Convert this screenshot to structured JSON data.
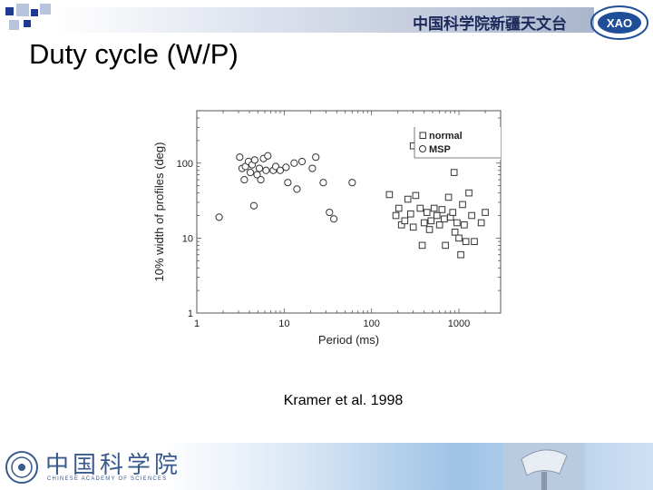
{
  "header": {
    "org_title": "中国科学院新疆天文台",
    "logo_text": "XAO"
  },
  "slide": {
    "title": "Duty cycle (W/P)",
    "caption": "Kramer et al. 1998"
  },
  "footer": {
    "org_name": "中国科学院",
    "org_name_en": "CHINESE ACADEMY OF SCIENCES"
  },
  "colors": {
    "title_bar_start": "#ffffff",
    "title_bar_end": "#aab6cd",
    "org_text": "#1c2a5a",
    "deco_square_dark": "#1f3a93",
    "deco_square_light": "#b8c4dc"
  },
  "chart_data": {
    "type": "scatter",
    "xlabel": "Period (ms)",
    "ylabel": "10% width of profiles (deg)",
    "xscale": "log",
    "yscale": "log",
    "xlim": [
      1,
      3000
    ],
    "ylim": [
      1,
      500
    ],
    "xticks": [
      1,
      10,
      100,
      1000
    ],
    "xtick_labels": [
      "1",
      "10",
      "100",
      "1000"
    ],
    "yticks": [
      1,
      10,
      100
    ],
    "ytick_labels": [
      "1",
      "10",
      "100"
    ],
    "legend": {
      "position": "top-right",
      "entries": [
        "normal",
        "MSP"
      ]
    },
    "series": [
      {
        "name": "MSP",
        "marker": "circle",
        "points": [
          [
            1.8,
            19
          ],
          [
            3.1,
            120
          ],
          [
            3.3,
            85
          ],
          [
            3.5,
            60
          ],
          [
            3.6,
            90
          ],
          [
            3.9,
            105
          ],
          [
            4.1,
            75
          ],
          [
            4.3,
            95
          ],
          [
            4.5,
            27
          ],
          [
            4.6,
            110
          ],
          [
            4.9,
            70
          ],
          [
            5.2,
            85
          ],
          [
            5.4,
            60
          ],
          [
            5.8,
            115
          ],
          [
            6.2,
            80
          ],
          [
            6.5,
            125
          ],
          [
            7.5,
            80
          ],
          [
            8.0,
            90
          ],
          [
            9.0,
            80
          ],
          [
            10.5,
            88
          ],
          [
            11.0,
            55
          ],
          [
            13.0,
            100
          ],
          [
            14.0,
            45
          ],
          [
            16.0,
            105
          ],
          [
            21.0,
            85
          ],
          [
            23.0,
            120
          ],
          [
            28.0,
            55
          ],
          [
            33.0,
            22
          ],
          [
            37.0,
            18
          ],
          [
            60.0,
            55
          ]
        ]
      },
      {
        "name": "normal",
        "marker": "square",
        "points": [
          [
            160,
            38
          ],
          [
            190,
            20
          ],
          [
            205,
            25
          ],
          [
            220,
            15
          ],
          [
            240,
            17
          ],
          [
            260,
            33
          ],
          [
            280,
            21
          ],
          [
            300,
            14
          ],
          [
            320,
            37
          ],
          [
            360,
            25
          ],
          [
            380,
            8
          ],
          [
            400,
            16
          ],
          [
            430,
            22
          ],
          [
            460,
            13
          ],
          [
            480,
            17
          ],
          [
            520,
            25
          ],
          [
            560,
            20
          ],
          [
            600,
            15
          ],
          [
            640,
            24
          ],
          [
            680,
            18
          ],
          [
            700,
            8
          ],
          [
            760,
            35
          ],
          [
            800,
            19
          ],
          [
            850,
            22
          ],
          [
            900,
            12
          ],
          [
            950,
            16
          ],
          [
            1000,
            10
          ],
          [
            1050,
            6
          ],
          [
            1100,
            28
          ],
          [
            1150,
            15
          ],
          [
            1200,
            9
          ],
          [
            1300,
            40
          ],
          [
            1400,
            20
          ],
          [
            1500,
            9
          ],
          [
            1800,
            16
          ],
          [
            2000,
            22
          ],
          [
            880,
            75
          ],
          [
            300,
            170
          ]
        ]
      }
    ]
  }
}
